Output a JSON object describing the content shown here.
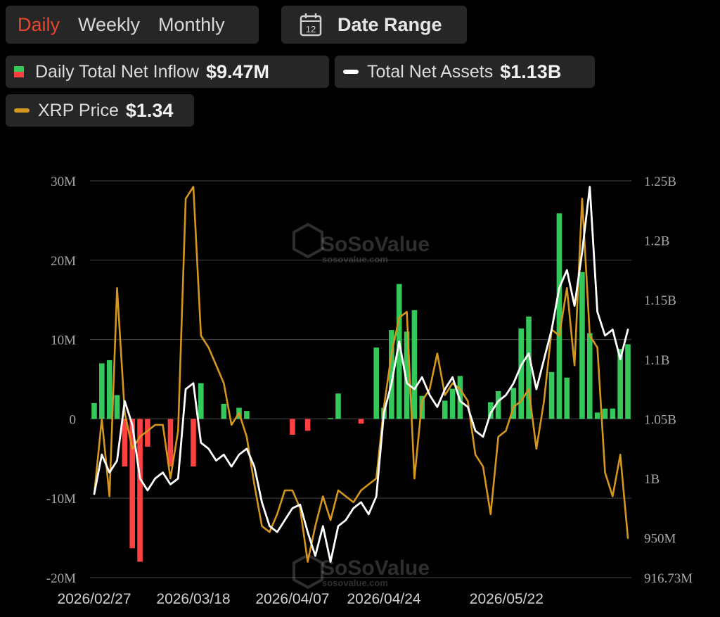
{
  "tabs": [
    {
      "label": "Daily",
      "active": true
    },
    {
      "label": "Weekly",
      "active": false
    },
    {
      "label": "Monthly",
      "active": false
    }
  ],
  "date_range": {
    "label": "Date Range",
    "icon": "calendar-icon",
    "icon_text": "12"
  },
  "legend": {
    "inflow": {
      "label": "Daily Total Net Inflow",
      "value": "$9.47M"
    },
    "assets": {
      "label": "Total Net Assets",
      "value": "$1.13B"
    },
    "price": {
      "label": "XRP Price",
      "value": "$1.34"
    }
  },
  "watermark": {
    "brand": "SoSoValue",
    "url": "sosovalue.com"
  },
  "colors": {
    "accent": "#e8462d",
    "inflow_positive": "#34c759",
    "inflow_negative": "#ff4040",
    "assets_line": "#ffffff",
    "price_line": "#d4961e",
    "grid": "#3a3a3a"
  },
  "chart_data": {
    "type": "bar+line",
    "left_axis": {
      "ticks": [
        30,
        20,
        10,
        0,
        -10,
        -20
      ],
      "tick_labels": [
        "30M",
        "20M",
        "10M",
        "0",
        "-10M",
        "-20M"
      ],
      "ylim": [
        -20,
        30
      ],
      "unit": "M"
    },
    "right_axis": {
      "ticks": [
        1.25,
        1.2,
        1.15,
        1.1,
        1.05,
        1.0,
        0.95,
        0.91673
      ],
      "tick_labels": [
        "1.25B",
        "1.2B",
        "1.15B",
        "1.1B",
        "1.05B",
        "1B",
        "950M",
        "916.73M"
      ],
      "ylim": [
        0.91673,
        1.25
      ],
      "unit": "B"
    },
    "x_tick_labels": [
      "2026/02/27",
      "2026/03/18",
      "2026/04/07",
      "2026/04/24",
      "2026/05/22"
    ],
    "x_tick_positions": [
      0,
      13,
      26,
      38,
      58
    ],
    "series": [
      {
        "name": "Daily Total Net Inflow",
        "kind": "bar",
        "values": [
          2.0,
          7.0,
          7.4,
          3.0,
          -6.0,
          -16.3,
          -18.0,
          -3.5,
          0,
          0,
          -6.0,
          0,
          0,
          -6.0,
          4.5,
          0,
          0,
          1.9,
          0,
          1.4,
          1.0,
          0,
          0,
          0,
          0,
          0,
          -2.0,
          0,
          -1.5,
          0,
          0,
          0.1,
          3.2,
          0,
          0,
          -0.6,
          0,
          9.0,
          1.4,
          11.2,
          17.0,
          11.0,
          13.7,
          2.9,
          0,
          0,
          2.3,
          3.8,
          5.4,
          0,
          0,
          0,
          2.1,
          3.5,
          0,
          3.9,
          11.4,
          12.9,
          0,
          0,
          5.9,
          25.9,
          5.2,
          0,
          18.5,
          10.8,
          0.8,
          1.3,
          1.3,
          8.8,
          9.4
        ]
      },
      {
        "name": "Total Net Assets",
        "kind": "line",
        "values": [
          0.987,
          1.02,
          1.005,
          1.015,
          1.065,
          1.045,
          1.0,
          0.99,
          1.0,
          1.005,
          0.995,
          1.0,
          1.075,
          1.08,
          1.03,
          1.025,
          1.015,
          1.02,
          1.01,
          1.02,
          1.025,
          1.01,
          0.98,
          0.96,
          0.955,
          0.965,
          0.975,
          0.978,
          0.955,
          0.935,
          0.96,
          0.93,
          0.96,
          0.965,
          0.975,
          0.98,
          0.97,
          0.985,
          1.055,
          1.08,
          1.115,
          1.08,
          1.075,
          1.085,
          1.07,
          1.06,
          1.075,
          1.085,
          1.065,
          1.06,
          1.04,
          1.035,
          1.055,
          1.065,
          1.07,
          1.08,
          1.095,
          1.105,
          1.075,
          1.1,
          1.125,
          1.16,
          1.175,
          1.145,
          1.19,
          1.245,
          1.14,
          1.12,
          1.125,
          1.1,
          1.125
        ],
        "position_scale_note": "values plotted against right axis (billions)"
      },
      {
        "name": "XRP Price",
        "kind": "line",
        "values": [
          0.987,
          1.05,
          0.985,
          1.16,
          1.055,
          1.025,
          1.035,
          1.04,
          1.045,
          1.045,
          1.0,
          1.04,
          1.235,
          1.245,
          1.12,
          1.11,
          1.095,
          1.08,
          1.045,
          1.055,
          1.035,
          0.995,
          0.96,
          0.955,
          0.97,
          0.99,
          0.99,
          0.975,
          0.93,
          0.96,
          0.985,
          0.965,
          0.99,
          0.985,
          0.98,
          0.99,
          0.995,
          1.0,
          1.06,
          1.105,
          1.135,
          1.14,
          1.0,
          1.065,
          1.075,
          1.105,
          1.07,
          1.08,
          1.075,
          1.065,
          1.02,
          1.01,
          0.97,
          1.035,
          1.04,
          1.06,
          1.065,
          1.075,
          1.025,
          1.065,
          1.125,
          1.12,
          1.16,
          1.095,
          1.235,
          1.12,
          1.11,
          1.005,
          0.985,
          1.02,
          0.95
        ],
        "position_scale_note": "plotted normalized to right axis range"
      }
    ],
    "grid": true,
    "legend_position": "top"
  }
}
